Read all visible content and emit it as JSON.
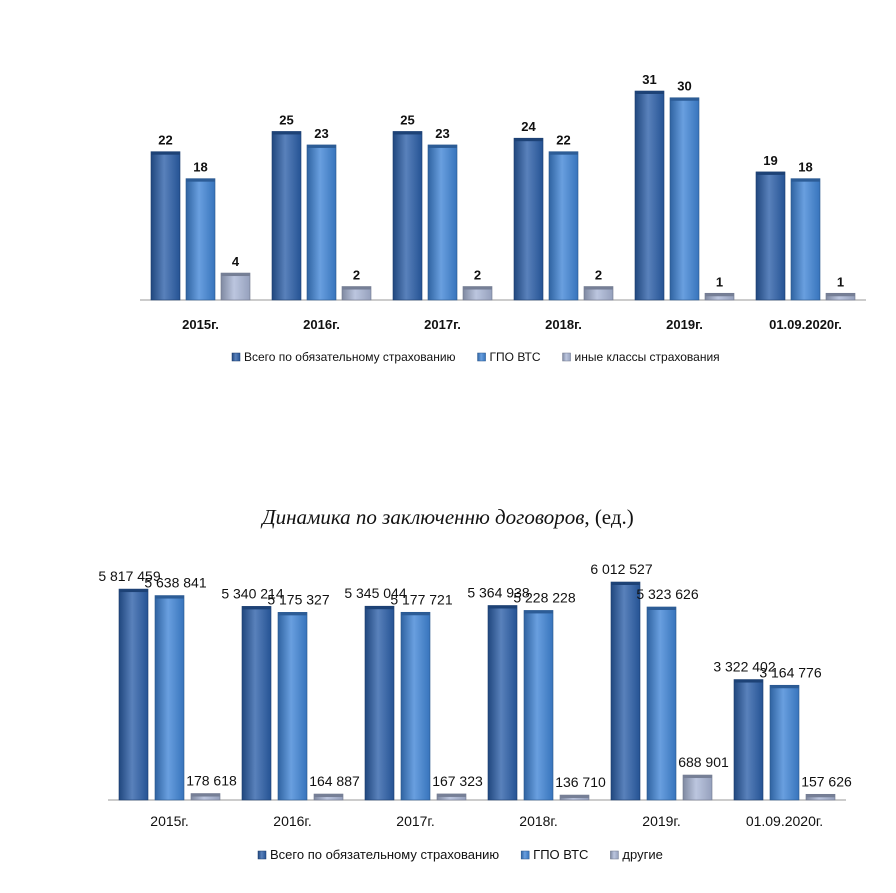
{
  "chart_data": [
    {
      "type": "bar",
      "title": "",
      "categories": [
        "2015г.",
        "2016г.",
        "2017г.",
        "2018г.",
        "2019г.",
        "01.09.2020г."
      ],
      "series": [
        {
          "name": "Всего по обязательному страхованию",
          "values": [
            22,
            25,
            25,
            24,
            31,
            19
          ]
        },
        {
          "name": "ГПО ВТС",
          "values": [
            18,
            23,
            23,
            22,
            30,
            18
          ]
        },
        {
          "name": "иные классы страхования",
          "values": [
            4,
            2,
            2,
            2,
            1,
            1
          ]
        }
      ],
      "value_labels": [
        [
          "22",
          "25",
          "25",
          "24",
          "31",
          "19"
        ],
        [
          "18",
          "23",
          "23",
          "22",
          "30",
          "18"
        ],
        [
          "4",
          "2",
          "2",
          "2",
          "1",
          "1"
        ]
      ],
      "colors": [
        "#2a5ea8",
        "#3f84d6",
        "#a9b6d6"
      ],
      "legend_position": "bottom",
      "grid": false
    },
    {
      "type": "bar",
      "title": "Динамика по заключенню договоров",
      "title_suffix": ", (ед.)",
      "categories": [
        "2015г.",
        "2016г.",
        "2017г.",
        "2018г.",
        "2019г.",
        "01.09.2020г."
      ],
      "series": [
        {
          "name": "Всего по обязательному страхованию",
          "values": [
            5817459,
            5340214,
            5345044,
            5364938,
            6012527,
            3322402
          ]
        },
        {
          "name": "ГПО ВТС",
          "values": [
            5638841,
            5175327,
            5177721,
            5228228,
            5323626,
            3164776
          ]
        },
        {
          "name": "другие",
          "values": [
            178618,
            164887,
            167323,
            136710,
            688901,
            157626
          ]
        }
      ],
      "value_labels": [
        [
          "5 817 459",
          "5 340 214",
          "5 345 044",
          "5 364 938",
          "6 012 527",
          "3 322 402"
        ],
        [
          "5 638 841",
          "5 175 327",
          "5 177 721",
          "5 228 228",
          "5 323 626",
          "3 164 776"
        ],
        [
          "178 618",
          "164 887",
          "167 323",
          "136 710",
          "688 901",
          "157 626"
        ]
      ],
      "colors": [
        "#2a5ea8",
        "#3f84d6",
        "#a9b6d6"
      ],
      "legend_position": "bottom",
      "grid": false
    }
  ]
}
